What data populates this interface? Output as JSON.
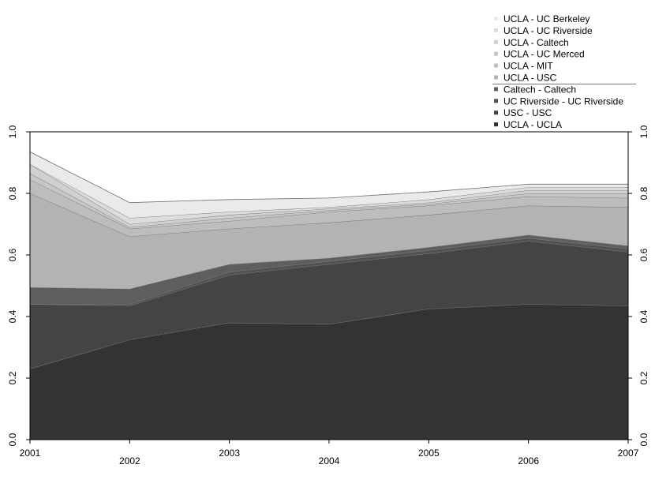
{
  "chart_data": {
    "type": "area",
    "stacked": true,
    "x": [
      2001,
      2002,
      2003,
      2004,
      2005,
      2006,
      2007
    ],
    "xlim": [
      2001,
      2007
    ],
    "ylim": [
      0,
      1
    ],
    "y_ticks": [
      0.0,
      0.2,
      0.4,
      0.6,
      0.8,
      1.0
    ],
    "y_tick_labels": [
      "0.0",
      "0.2",
      "0.4",
      "0.6",
      "0.8",
      "1.0"
    ],
    "x_tick_labels": [
      "2001",
      "2002",
      "2003",
      "2004",
      "2005",
      "2006",
      "2007"
    ],
    "right_axis": true,
    "grid": false,
    "legend_position": "top-right",
    "series": [
      {
        "name": "UCLA - UCLA",
        "color": "#333333",
        "values": [
          0.23,
          0.325,
          0.38,
          0.375,
          0.425,
          0.44,
          0.435
        ]
      },
      {
        "name": "USC - USC",
        "color": "#444444",
        "values": [
          0.21,
          0.11,
          0.155,
          0.195,
          0.18,
          0.205,
          0.175
        ]
      },
      {
        "name": "UC Riverside - UC Riverside",
        "color": "#525252",
        "values": [
          0.0,
          0.005,
          0.01,
          0.01,
          0.01,
          0.01,
          0.01
        ]
      },
      {
        "name": "Caltech - Caltech",
        "color": "#5e5e5e",
        "values": [
          0.055,
          0.05,
          0.025,
          0.01,
          0.01,
          0.01,
          0.01
        ]
      },
      {
        "name": "UCLA - USC",
        "color": "#b3b3b3",
        "values": [
          0.305,
          0.17,
          0.115,
          0.115,
          0.105,
          0.095,
          0.125
        ]
      },
      {
        "name": "UCLA - MIT",
        "color": "#bdbdbd",
        "values": [
          0.045,
          0.025,
          0.025,
          0.035,
          0.03,
          0.03,
          0.03
        ]
      },
      {
        "name": "UCLA - UC Merced",
        "color": "#c6c6c6",
        "values": [
          0.02,
          0.005,
          0.01,
          0.005,
          0.005,
          0.01,
          0.015
        ]
      },
      {
        "name": "UCLA - Caltech",
        "color": "#d0d0d0",
        "values": [
          0.03,
          0.01,
          0.01,
          0.005,
          0.005,
          0.01,
          0.01
        ]
      },
      {
        "name": "UCLA - UC Riverside",
        "color": "#dcdcdc",
        "values": [
          0.0,
          0.02,
          0.01,
          0.005,
          0.01,
          0.01,
          0.01
        ]
      },
      {
        "name": "UCLA - UC Berkeley",
        "color": "#eaeaea",
        "values": [
          0.04,
          0.05,
          0.04,
          0.03,
          0.025,
          0.01,
          0.01
        ]
      }
    ],
    "legend_order": [
      "UCLA - UC Berkeley",
      "UCLA - UC Riverside",
      "UCLA - Caltech",
      "UCLA - UC Merced",
      "UCLA - MIT",
      "UCLA - USC",
      "Caltech - Caltech",
      "UC Riverside - UC Riverside",
      "USC - USC",
      "UCLA - UCLA"
    ],
    "legend_separator_after": "UCLA - USC"
  }
}
